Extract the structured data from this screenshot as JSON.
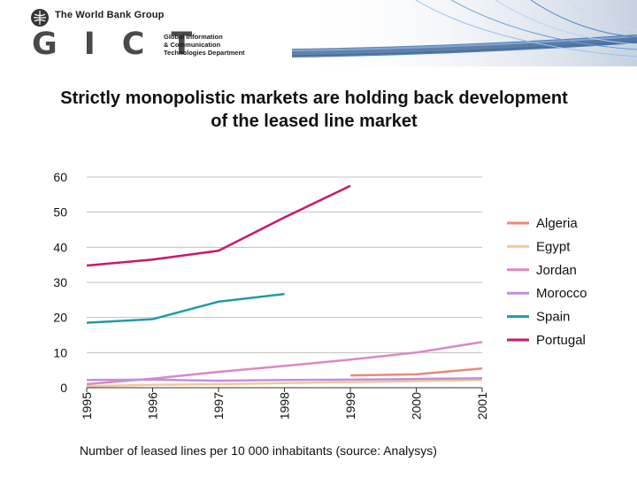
{
  "header": {
    "org_name": "The World Bank Group",
    "unit_letters": "GICT",
    "unit_line1": "Global Information",
    "unit_line2": "& Communication",
    "unit_line3": "Technologies Department"
  },
  "colors": {
    "Algeria": "#ee8877",
    "Egypt": "#f2c896",
    "Jordan": "#dc88c4",
    "Morocco": "#bf8fe0",
    "Spain": "#1f9aa8",
    "Portugal": "#c8186c"
  },
  "chart_data": {
    "type": "line",
    "title": "Strictly monopolistic markets are holding back development of the leased line market",
    "xlabel": "",
    "ylabel": "",
    "x": [
      "1995",
      "1996",
      "1997",
      "1998",
      "1999",
      "2000",
      "2001"
    ],
    "ylim": [
      0,
      60
    ],
    "yticks": [
      0,
      10,
      20,
      30,
      40,
      50,
      60
    ],
    "grid": true,
    "legend_position": "right",
    "series": [
      {
        "name": "Algeria",
        "values": [
          null,
          null,
          null,
          null,
          3.5,
          3.8,
          5.5
        ]
      },
      {
        "name": "Egypt",
        "values": [
          0.4,
          0.8,
          1.0,
          1.3,
          1.6,
          1.9,
          2.2
        ]
      },
      {
        "name": "Jordan",
        "values": [
          1.0,
          2.6,
          4.5,
          6.2,
          8.0,
          10.0,
          13.0
        ]
      },
      {
        "name": "Morocco",
        "values": [
          2.2,
          2.3,
          2.0,
          2.2,
          2.3,
          2.5,
          2.7
        ]
      },
      {
        "name": "Spain",
        "values": [
          18.5,
          19.5,
          24.5,
          26.7,
          null,
          null,
          null
        ]
      },
      {
        "name": "Portugal",
        "values": [
          34.8,
          36.5,
          39.0,
          48.5,
          57.5,
          null,
          null
        ]
      }
    ],
    "footnote": "Number of leased lines per 10 000 inhabitants (source: Analysys)"
  }
}
